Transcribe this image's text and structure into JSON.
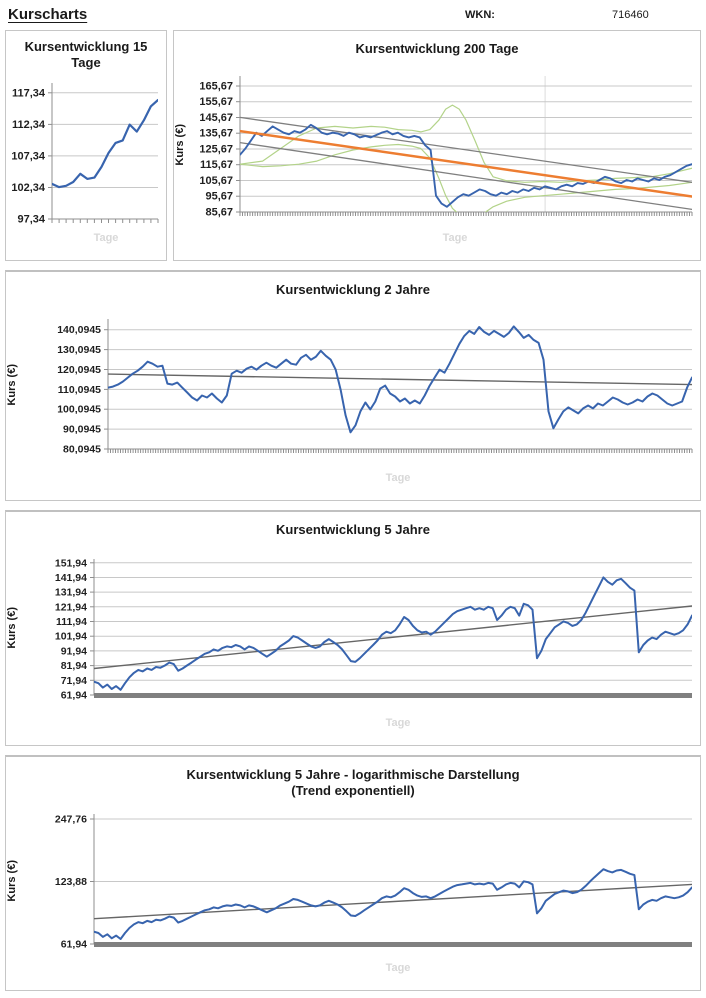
{
  "header": {
    "title": "Kurscharts",
    "wkn_label": "WKN:",
    "wkn_value": "716460"
  },
  "colors": {
    "price": "#3864ae",
    "trend_orange": "#ed7d31",
    "channel_gray": "#7f7f7f",
    "trend_gray": "#666666",
    "band_green": "#b3d389",
    "grid": "#c8c8c8",
    "axis": "#8f8f8f",
    "baseline": "#808080",
    "vgrid": "#dcdcdc",
    "ghost": "#d8d8d8"
  },
  "chart_data": [
    {
      "type": "line",
      "title": "Kursentwicklung 15 Tage",
      "ylabel": "",
      "xlabel": "Tage",
      "ylim": [
        97.34,
        118.9
      ],
      "log": false,
      "axis_style": "ticks",
      "tick_count": 15,
      "yticks": [
        {
          "label": "117,34",
          "v": 117.34
        },
        {
          "label": "112,34",
          "v": 112.34
        },
        {
          "label": "107,34",
          "v": 107.34
        },
        {
          "label": "102,34",
          "v": 102.34
        },
        {
          "label": "97,34",
          "v": 97.34
        }
      ],
      "series": [
        {
          "name": "price",
          "color": "#3864ae",
          "width": 2.2,
          "values": [
            102.9,
            102.4,
            102.6,
            103.2,
            104.5,
            103.7,
            103.9,
            105.6,
            107.8,
            109.4,
            109.8,
            112.3,
            111.2,
            113.0,
            115.2,
            116.2
          ]
        }
      ]
    },
    {
      "type": "line",
      "title": "Kursentwicklung 200 Tage",
      "ylabel": "Kurs (€)",
      "xlabel": "Tage",
      "ylim": [
        85.67,
        172
      ],
      "log": false,
      "axis_style": "dense",
      "vgrid": [
        0.675
      ],
      "yticks": [
        {
          "label": "165,67",
          "v": 165.67
        },
        {
          "label": "155,67",
          "v": 155.67
        },
        {
          "label": "145,67",
          "v": 145.67
        },
        {
          "label": "135,67",
          "v": 135.67
        },
        {
          "label": "125,67",
          "v": 125.67
        },
        {
          "label": "115,67",
          "v": 115.67
        },
        {
          "label": "105,67",
          "v": 105.67
        },
        {
          "label": "95,67",
          "v": 95.67
        },
        {
          "label": "85,67",
          "v": 85.67
        }
      ],
      "series": [
        {
          "name": "band-upper",
          "color": "#b3d389",
          "width": 1.2,
          "points": [
            [
              0,
              116
            ],
            [
              0.05,
              118
            ],
            [
              0.09,
              126
            ],
            [
              0.13,
              134
            ],
            [
              0.17,
              139
            ],
            [
              0.21,
              140
            ],
            [
              0.25,
              139
            ],
            [
              0.29,
              140
            ],
            [
              0.32,
              139.5
            ],
            [
              0.35,
              138
            ],
            [
              0.38,
              137.5
            ],
            [
              0.4,
              136.5
            ],
            [
              0.42,
              138
            ],
            [
              0.44,
              144
            ],
            [
              0.455,
              151
            ],
            [
              0.47,
              153.5
            ],
            [
              0.485,
              151
            ],
            [
              0.5,
              144
            ],
            [
              0.52,
              131
            ],
            [
              0.54,
              117
            ],
            [
              0.56,
              108
            ],
            [
              0.59,
              105.5
            ],
            [
              0.63,
              104.5
            ],
            [
              0.67,
              105
            ],
            [
              0.71,
              104.5
            ],
            [
              0.75,
              105.5
            ],
            [
              0.79,
              106
            ],
            [
              0.83,
              107
            ],
            [
              0.87,
              107.5
            ],
            [
              0.91,
              108
            ],
            [
              0.95,
              110
            ],
            [
              1,
              113.5
            ]
          ]
        },
        {
          "name": "band-lower",
          "color": "#b3d389",
          "width": 1.2,
          "points": [
            [
              0,
              116
            ],
            [
              0.05,
              114.5
            ],
            [
              0.09,
              115
            ],
            [
              0.13,
              116
            ],
            [
              0.17,
              118
            ],
            [
              0.21,
              122
            ],
            [
              0.25,
              125
            ],
            [
              0.29,
              127
            ],
            [
              0.32,
              128
            ],
            [
              0.35,
              128.5
            ],
            [
              0.38,
              127.5
            ],
            [
              0.4,
              126
            ],
            [
              0.42,
              120
            ],
            [
              0.44,
              107
            ],
            [
              0.455,
              96
            ],
            [
              0.47,
              88
            ],
            [
              0.485,
              84
            ],
            [
              0.5,
              82.5
            ],
            [
              0.52,
              83
            ],
            [
              0.54,
              85
            ],
            [
              0.56,
              89
            ],
            [
              0.59,
              92.5
            ],
            [
              0.63,
              95
            ],
            [
              0.67,
              96
            ],
            [
              0.71,
              97
            ],
            [
              0.75,
              98
            ],
            [
              0.79,
              99
            ],
            [
              0.83,
              100
            ],
            [
              0.87,
              100.5
            ],
            [
              0.91,
              101.5
            ],
            [
              0.95,
              102.5
            ],
            [
              1,
              104.5
            ]
          ]
        },
        {
          "name": "channel-upper",
          "color": "#7f7f7f",
          "width": 1.3,
          "points": [
            [
              0,
              145.7
            ],
            [
              1,
              104.5
            ]
          ]
        },
        {
          "name": "channel-lower",
          "color": "#7f7f7f",
          "width": 1.3,
          "points": [
            [
              0,
              129.7
            ],
            [
              1,
              87.3
            ]
          ]
        },
        {
          "name": "price",
          "color": "#3864ae",
          "width": 1.9,
          "values": [
            122,
            126,
            131,
            136,
            134,
            137,
            140,
            138,
            136,
            135,
            137,
            136,
            138,
            141,
            139,
            136,
            135,
            136,
            135.5,
            134,
            136,
            135,
            133,
            134,
            133,
            134.5,
            136,
            137,
            135,
            136,
            134,
            133,
            134,
            133,
            128,
            125,
            96,
            91,
            89,
            92,
            95,
            97,
            96,
            98,
            100,
            99,
            97,
            96,
            98,
            97,
            99,
            98,
            100,
            99,
            101,
            100,
            102,
            101,
            100,
            102,
            103,
            102,
            104,
            103.5,
            105,
            104,
            106,
            108,
            107,
            105,
            104,
            106,
            105,
            107,
            106,
            105,
            107,
            106,
            108,
            109,
            111,
            113,
            115,
            116
          ]
        },
        {
          "name": "trend",
          "color": "#ed7d31",
          "width": 2.5,
          "points": [
            [
              0,
              137
            ],
            [
              1,
              95.5
            ]
          ]
        }
      ]
    },
    {
      "type": "line",
      "title": "Kursentwicklung 2 Jahre",
      "ylabel": "Kurs (€)",
      "xlabel": "Tage",
      "ylim": [
        80.0945,
        145.5
      ],
      "log": false,
      "axis_style": "dense",
      "yticks": [
        {
          "label": "140,0945",
          "v": 140.0945
        },
        {
          "label": "130,0945",
          "v": 130.0945
        },
        {
          "label": "120,0945",
          "v": 120.0945
        },
        {
          "label": "110,0945",
          "v": 110.0945
        },
        {
          "label": "100,0945",
          "v": 100.0945
        },
        {
          "label": "90,0945",
          "v": 90.0945
        },
        {
          "label": "80,0945",
          "v": 80.0945
        }
      ],
      "series": [
        {
          "name": "trend",
          "color": "#666666",
          "width": 1.4,
          "points": [
            [
              0,
              117.8
            ],
            [
              1,
              112.5
            ]
          ]
        },
        {
          "name": "price",
          "color": "#3864ae",
          "width": 2,
          "values": [
            111,
            111.5,
            112.5,
            114,
            116,
            118,
            119.5,
            121.5,
            124,
            123,
            121.5,
            122,
            113,
            112.5,
            113.5,
            111,
            108.5,
            106,
            104.5,
            107,
            106,
            108,
            105.5,
            103.5,
            107,
            118,
            119.5,
            118.5,
            120.5,
            121.5,
            120,
            122,
            123.5,
            122,
            121,
            123,
            125,
            123,
            122.5,
            126,
            127.5,
            125,
            126.5,
            129.5,
            127,
            125,
            120,
            110,
            97,
            88.5,
            92,
            99,
            103.5,
            100,
            104,
            110.5,
            112,
            108,
            106.5,
            104,
            105.5,
            103,
            104.5,
            103,
            107,
            112,
            116,
            120,
            118.5,
            123,
            128,
            133,
            137,
            139.5,
            138,
            141.5,
            139,
            137.5,
            139.5,
            138,
            136.5,
            138.5,
            141.8,
            139,
            136,
            137.5,
            135,
            133.5,
            125,
            99,
            90.5,
            95,
            99,
            101,
            99.5,
            98,
            100.5,
            102,
            100.5,
            103,
            102,
            104,
            106,
            105,
            103.5,
            102.5,
            103.5,
            105,
            104,
            106.5,
            108,
            107,
            105,
            103,
            102,
            103,
            104,
            111,
            116
          ]
        }
      ]
    },
    {
      "type": "line",
      "title": "Kursentwicklung 5 Jahre",
      "ylabel": "Kurs (€)",
      "xlabel": "Tage",
      "ylim": [
        61.94,
        154.5
      ],
      "log": false,
      "axis_style": "thick",
      "yticks": [
        {
          "label": "151,94",
          "v": 151.94
        },
        {
          "label": "141,94",
          "v": 141.94
        },
        {
          "label": "131,94",
          "v": 131.94
        },
        {
          "label": "121,94",
          "v": 121.94
        },
        {
          "label": "111,94",
          "v": 111.94
        },
        {
          "label": "101,94",
          "v": 101.94
        },
        {
          "label": "91,94",
          "v": 91.94
        },
        {
          "label": "81,94",
          "v": 81.94
        },
        {
          "label": "71,94",
          "v": 71.94
        },
        {
          "label": "61,94",
          "v": 61.94
        }
      ],
      "series": [
        {
          "name": "trend",
          "color": "#666666",
          "width": 1.4,
          "points": [
            [
              0,
              80
            ],
            [
              1,
              122.5
            ]
          ]
        },
        {
          "name": "price",
          "color": "#3864ae",
          "width": 2,
          "values": [
            71,
            70,
            67,
            69,
            66,
            68,
            65.5,
            70,
            74,
            77,
            79,
            78,
            80,
            79,
            81,
            80.5,
            82,
            84,
            83,
            78.5,
            80,
            82,
            84,
            86,
            88,
            90,
            91,
            93,
            92,
            94,
            95,
            94.5,
            96,
            95,
            93,
            95,
            94,
            92,
            90,
            88,
            90,
            92,
            95,
            97,
            99,
            102,
            101,
            99,
            97,
            95,
            94,
            95,
            98,
            100,
            98,
            96,
            93,
            89,
            85,
            84.5,
            87,
            90,
            93,
            96,
            99,
            103,
            105,
            104,
            106,
            110,
            115,
            113,
            109,
            106,
            104.5,
            105,
            103,
            105,
            108,
            111,
            114,
            117,
            119,
            120,
            121,
            122,
            120,
            121,
            120,
            122,
            121,
            113,
            116,
            120,
            122,
            121,
            116,
            124,
            123,
            120,
            87,
            92,
            100,
            104,
            108,
            110,
            112,
            111,
            109,
            110,
            113,
            118,
            124,
            130,
            136,
            142,
            139,
            137,
            140,
            141,
            138,
            135,
            133,
            91,
            96,
            99,
            101,
            100,
            103,
            105,
            104,
            103,
            104,
            106,
            110,
            116
          ]
        }
      ]
    },
    {
      "type": "line",
      "title": "Kursentwicklung 5 Jahre - logarithmische Darstellung",
      "subtitle": "(Trend exponentiell)",
      "ylabel": "Kurs (€)",
      "xlabel": "Tage",
      "ylim": [
        61.94,
        262
      ],
      "log": true,
      "axis_style": "thick",
      "yticks": [
        {
          "label": "247,76",
          "v": 247.76
        },
        {
          "label": "123,88",
          "v": 123.88
        },
        {
          "label": "61,94",
          "v": 61.94
        }
      ],
      "series": [
        {
          "name": "trend-exponential",
          "color": "#666666",
          "width": 1.4,
          "points": [
            [
              0,
              82
            ],
            [
              1,
              120
            ]
          ]
        },
        {
          "name": "price",
          "color": "#3864ae",
          "width": 2,
          "values": [
            71,
            70,
            67,
            69,
            66,
            68,
            65.5,
            70,
            74,
            77,
            79,
            78,
            80,
            79,
            81,
            80.5,
            82,
            84,
            83,
            78.5,
            80,
            82,
            84,
            86,
            88,
            90,
            91,
            93,
            92,
            94,
            95,
            94.5,
            96,
            95,
            93,
            95,
            94,
            92,
            90,
            88,
            90,
            92,
            95,
            97,
            99,
            102,
            101,
            99,
            97,
            95,
            94,
            95,
            98,
            100,
            98,
            96,
            93,
            89,
            85,
            84.5,
            87,
            90,
            93,
            96,
            99,
            103,
            105,
            104,
            106,
            110,
            115,
            113,
            109,
            106,
            104.5,
            105,
            103,
            105,
            108,
            111,
            114,
            117,
            119,
            120,
            121,
            122,
            120,
            121,
            120,
            122,
            121,
            113,
            116,
            120,
            122,
            121,
            116,
            124,
            123,
            120,
            87,
            92,
            100,
            104,
            108,
            110,
            112,
            111,
            109,
            110,
            113,
            118,
            124,
            130,
            136,
            142,
            139,
            137,
            140,
            141,
            138,
            135,
            133,
            91,
            96,
            99,
            101,
            100,
            103,
            105,
            104,
            103,
            104,
            106,
            110,
            116
          ]
        }
      ]
    }
  ]
}
